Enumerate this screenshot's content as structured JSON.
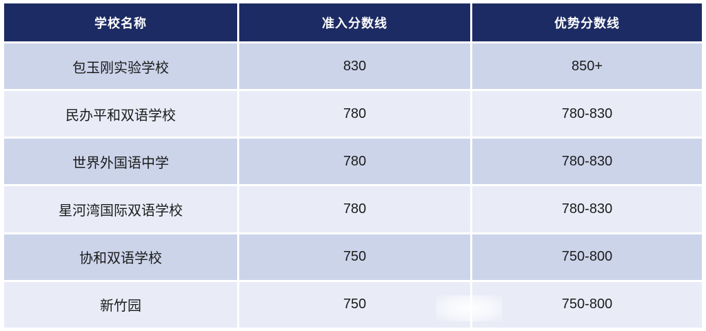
{
  "chart_data": {
    "type": "table",
    "columns": [
      "学校名称",
      "准入分数线",
      "优势分数线"
    ],
    "rows": [
      [
        "包玉刚实验学校",
        "830",
        "850+"
      ],
      [
        "民办平和双语学校",
        "780",
        "780-830"
      ],
      [
        "世界外国语中学",
        "780",
        "780-830"
      ],
      [
        "星河湾国际双语学校",
        "780",
        "780-830"
      ],
      [
        "协和双语学校",
        "750",
        "750-800"
      ],
      [
        "新竹园",
        "750",
        "750-800"
      ]
    ]
  },
  "colors": {
    "header_bg": "#1c2b63",
    "header_text": "#ffffff",
    "row_alt_dark": "#ccd4ea",
    "row_alt_light": "#e9ecf7",
    "body_text": "#1b1b1b",
    "divider": "#ffffff"
  }
}
